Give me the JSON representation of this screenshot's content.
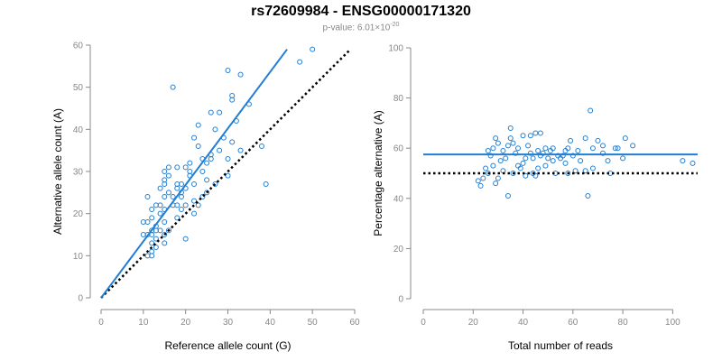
{
  "figure": {
    "title": "rs72609984 - ENSG00000171320",
    "subtitle_prefix": "p-value: 6.01×10",
    "subtitle_exponent": "-20"
  },
  "colors": {
    "points": "#1f7fd4",
    "fit_line": "#1f7fd4",
    "expected_line": "#000000",
    "axis": "#888888"
  },
  "chart_data": [
    {
      "type": "scatter",
      "xlabel": "Reference allele count (G)",
      "ylabel": "Alternative allele count (A)",
      "xlim": [
        0,
        60
      ],
      "ylim": [
        0,
        60
      ],
      "xticks": [
        0,
        10,
        20,
        30,
        40,
        50,
        60
      ],
      "yticks": [
        0,
        10,
        20,
        30,
        40,
        50,
        60
      ],
      "grid": false,
      "points": [
        [
          10,
          15
        ],
        [
          10,
          18
        ],
        [
          11,
          18
        ],
        [
          11,
          15
        ],
        [
          11,
          24
        ],
        [
          11,
          10
        ],
        [
          12,
          10
        ],
        [
          12,
          11
        ],
        [
          12,
          13
        ],
        [
          12,
          15
        ],
        [
          12,
          16
        ],
        [
          12,
          19
        ],
        [
          12,
          21
        ],
        [
          13,
          14
        ],
        [
          13,
          16
        ],
        [
          13,
          17
        ],
        [
          13,
          22
        ],
        [
          13,
          12
        ],
        [
          14,
          20
        ],
        [
          14,
          26
        ],
        [
          14,
          22
        ],
        [
          14,
          16
        ],
        [
          15,
          13
        ],
        [
          15,
          15
        ],
        [
          15,
          18
        ],
        [
          15,
          21
        ],
        [
          15,
          24
        ],
        [
          15,
          27
        ],
        [
          15,
          28
        ],
        [
          15,
          30
        ],
        [
          16,
          16
        ],
        [
          16,
          25
        ],
        [
          16,
          29
        ],
        [
          16,
          31
        ],
        [
          17,
          50
        ],
        [
          17,
          22
        ],
        [
          17,
          24
        ],
        [
          18,
          19
        ],
        [
          18,
          22
        ],
        [
          18,
          26
        ],
        [
          18,
          27
        ],
        [
          18,
          31
        ],
        [
          19,
          21
        ],
        [
          19,
          24
        ],
        [
          19,
          25
        ],
        [
          19,
          27
        ],
        [
          20,
          14
        ],
        [
          20,
          22
        ],
        [
          20,
          26
        ],
        [
          20,
          31
        ],
        [
          21,
          29
        ],
        [
          21,
          30
        ],
        [
          21,
          32
        ],
        [
          22,
          20
        ],
        [
          22,
          23
        ],
        [
          22,
          27
        ],
        [
          22,
          38
        ],
        [
          23,
          36
        ],
        [
          23,
          41
        ],
        [
          23,
          22
        ],
        [
          24,
          30
        ],
        [
          24,
          24
        ],
        [
          24,
          33
        ],
        [
          25,
          25
        ],
        [
          25,
          28
        ],
        [
          25,
          32
        ],
        [
          26,
          34
        ],
        [
          26,
          44
        ],
        [
          26,
          33
        ],
        [
          27,
          40
        ],
        [
          28,
          44
        ],
        [
          28,
          35
        ],
        [
          29,
          38
        ],
        [
          30,
          54
        ],
        [
          30,
          33
        ],
        [
          31,
          37
        ],
        [
          31,
          47
        ],
        [
          31,
          48
        ],
        [
          32,
          42
        ],
        [
          33,
          53
        ],
        [
          33,
          35
        ],
        [
          35,
          46
        ],
        [
          38,
          36
        ],
        [
          39,
          27
        ],
        [
          47,
          56
        ],
        [
          50,
          59
        ],
        [
          30,
          29
        ],
        [
          27,
          27
        ]
      ],
      "fit_line": {
        "x": [
          0,
          44
        ],
        "y": [
          0,
          59
        ]
      },
      "expected_line": {
        "x": [
          0,
          59
        ],
        "y": [
          0,
          59
        ]
      }
    },
    {
      "type": "scatter",
      "xlabel": "Total number of reads",
      "ylabel": "Percentage alternative (A)",
      "xlim": [
        0,
        110
      ],
      "ylim": [
        0,
        100
      ],
      "xticks": [
        0,
        20,
        40,
        60,
        80,
        100
      ],
      "yticks": [
        0,
        20,
        40,
        60,
        80,
        100
      ],
      "grid": false,
      "points": [
        [
          22,
          47
        ],
        [
          23,
          45
        ],
        [
          24,
          48
        ],
        [
          25,
          52
        ],
        [
          26,
          59
        ],
        [
          26,
          50
        ],
        [
          27,
          57
        ],
        [
          28,
          53
        ],
        [
          28,
          60
        ],
        [
          29,
          64
        ],
        [
          29,
          46
        ],
        [
          30,
          62
        ],
        [
          30,
          48
        ],
        [
          31,
          55
        ],
        [
          32,
          59
        ],
        [
          32,
          51
        ],
        [
          33,
          56
        ],
        [
          34,
          41
        ],
        [
          34,
          61
        ],
        [
          35,
          64
        ],
        [
          35,
          68
        ],
        [
          36,
          62
        ],
        [
          36,
          50
        ],
        [
          37,
          58
        ],
        [
          38,
          60
        ],
        [
          38,
          53
        ],
        [
          39,
          52
        ],
        [
          40,
          65
        ],
        [
          40,
          54
        ],
        [
          41,
          56
        ],
        [
          41,
          49
        ],
        [
          42,
          61
        ],
        [
          43,
          58
        ],
        [
          43,
          65
        ],
        [
          44,
          56
        ],
        [
          44,
          50
        ],
        [
          45,
          66
        ],
        [
          45,
          49
        ],
        [
          46,
          52
        ],
        [
          46,
          59
        ],
        [
          47,
          66
        ],
        [
          47,
          57
        ],
        [
          48,
          58
        ],
        [
          49,
          53
        ],
        [
          49,
          60
        ],
        [
          50,
          56
        ],
        [
          51,
          59
        ],
        [
          52,
          60
        ],
        [
          52,
          55
        ],
        [
          53,
          50
        ],
        [
          54,
          57
        ],
        [
          55,
          56
        ],
        [
          56,
          57
        ],
        [
          57,
          54
        ],
        [
          57,
          59
        ],
        [
          58,
          60
        ],
        [
          58,
          50
        ],
        [
          59,
          63
        ],
        [
          60,
          57
        ],
        [
          61,
          51
        ],
        [
          62,
          59
        ],
        [
          63,
          55
        ],
        [
          65,
          51
        ],
        [
          65,
          64
        ],
        [
          66,
          41
        ],
        [
          67,
          75
        ],
        [
          68,
          60
        ],
        [
          68,
          52
        ],
        [
          70,
          63
        ],
        [
          72,
          58
        ],
        [
          74,
          55
        ],
        [
          75,
          50
        ],
        [
          77,
          60
        ],
        [
          78,
          60
        ],
        [
          80,
          56
        ],
        [
          81,
          64
        ],
        [
          84,
          61
        ],
        [
          104,
          55
        ],
        [
          108,
          54
        ],
        [
          72,
          61
        ]
      ],
      "fit_line": {
        "x": [
          0,
          110
        ],
        "y": [
          57.5,
          57.5
        ]
      },
      "expected_line": {
        "x": [
          0,
          110
        ],
        "y": [
          50,
          50
        ]
      }
    }
  ]
}
